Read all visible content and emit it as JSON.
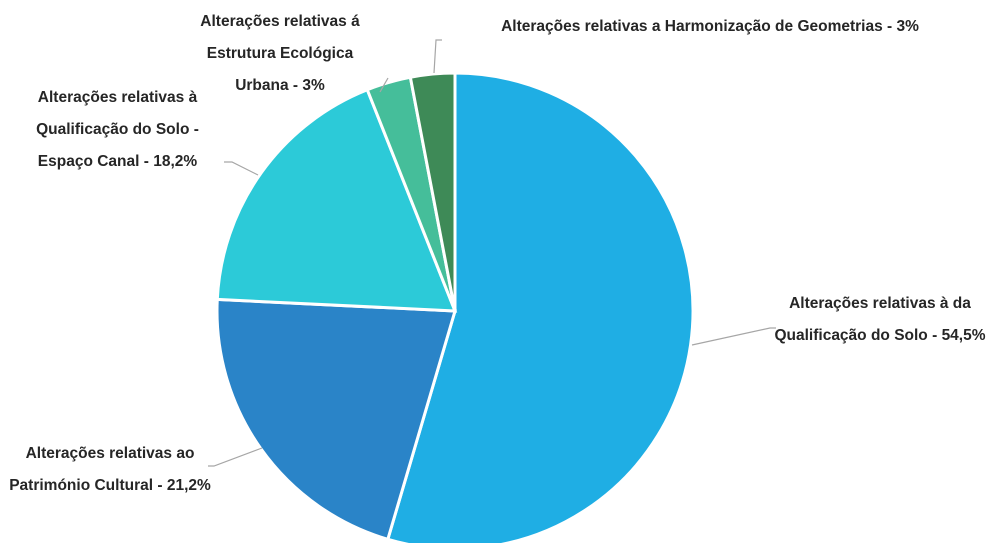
{
  "chart_data": {
    "type": "pie",
    "categories": [
      "Alterações relativas à da Qualificação do Solo -",
      "Alterações relativas ao Património Cultural -",
      "Alterações relativas à Qualificação do Solo - Espaço Canal -",
      "Alterações relativas á Estrutura Ecológica Urbana -",
      "Alterações relativas a Harmonização de Geometrias -"
    ],
    "values": [
      54.5,
      21.2,
      18.2,
      3,
      3
    ],
    "value_labels": [
      "54,5%",
      "21,2%",
      "18,2%",
      "3%",
      "3%"
    ],
    "colors": [
      "#1faee4",
      "#2a84c8",
      "#2ccad8",
      "#45be9a",
      "#3e8a57"
    ]
  }
}
